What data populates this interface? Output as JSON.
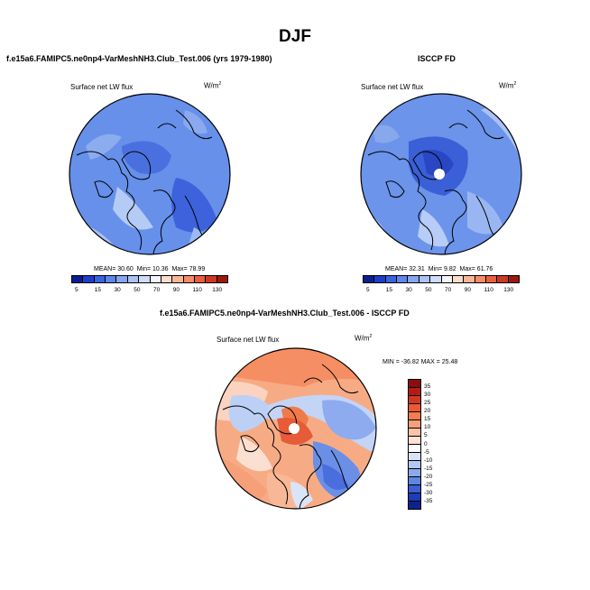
{
  "figure": {
    "season": "DJF",
    "panels": [
      {
        "title": "f.e15a6.FAMIPC5.ne0np4-VarMeshNH3.Club_Test.006 (yrs 1979-1980)",
        "variable": "Surface net LW flux",
        "units": "W/m",
        "units_sup": "2",
        "stats_mean_label": "MEAN=",
        "stats_mean": "30.60",
        "stats_min_label": "Min=",
        "stats_min": "10.36",
        "stats_max_label": "Max=",
        "stats_max": "78.99",
        "map_fill": "#5f86e8"
      },
      {
        "title": "ISCCP FD",
        "variable": "Surface net LW flux",
        "units": "W/m",
        "units_sup": "2",
        "stats_mean_label": "MEAN=",
        "stats_mean": "32.31",
        "stats_min_label": "Min=",
        "stats_min": "9.82",
        "stats_max_label": "Max=",
        "stats_max": "61.76",
        "map_fill": "#5a80e4"
      }
    ],
    "diff_panel": {
      "title": "f.e15a6.FAMIPC5.ne0np4-VarMeshNH3.Club_Test.006 - ISCCP FD",
      "variable": "Surface net LW flux",
      "units": "W/m",
      "units_sup": "2",
      "minmax": "MIN = -36.82 MAX = 25.48"
    },
    "colorbar_levels": [
      "5",
      "15",
      "30",
      "50",
      "70",
      "90",
      "110",
      "130"
    ],
    "colorbar_colors": [
      "#0a1f8f",
      "#1e3ec9",
      "#3a63e0",
      "#5f86ea",
      "#86a6ef",
      "#aac2f4",
      "#cfdcf8",
      "#f3f5fb",
      "#fcdccc",
      "#f9b697",
      "#f58c67",
      "#e8613f",
      "#cc3a22",
      "#9b1a0e"
    ],
    "diff_levels": [
      "35",
      "30",
      "25",
      "20",
      "15",
      "10",
      "5",
      "0",
      "-5",
      "-10",
      "-15",
      "-20",
      "-25",
      "-30",
      "-35"
    ],
    "diff_colors": [
      "#8e0c0c",
      "#b51b11",
      "#d3381f",
      "#e95a33",
      "#f47d4f",
      "#f8a07a",
      "#fbc3a6",
      "#fde2d4",
      "#ffffff",
      "#d8e3f8",
      "#b3c8f2",
      "#8aa9ea",
      "#5f86e0",
      "#3a5fd0",
      "#1f3cb6",
      "#0f218f"
    ]
  }
}
